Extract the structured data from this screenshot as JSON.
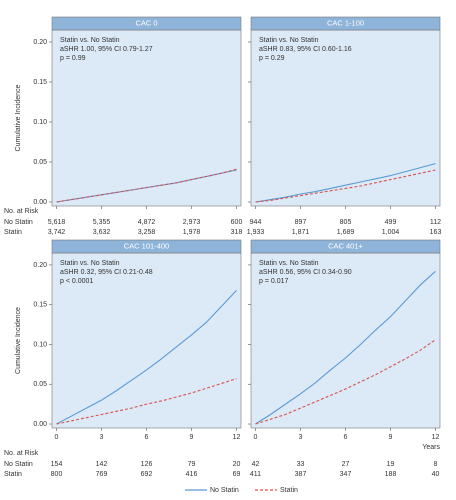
{
  "chart_data": [
    {
      "type": "line",
      "title": "CAC 0",
      "annotation": [
        "Statin vs. No Statin",
        "aSHR 1.00, 95% CI 0.79-1.27",
        "p = 0.99"
      ],
      "ylabel": "Cumulative Incidence",
      "x": [
        0,
        1,
        2,
        3,
        4,
        5,
        6,
        7,
        8,
        9,
        10,
        11,
        12
      ],
      "xlim": [
        -0.3,
        12.3
      ],
      "xticks": [
        0,
        3,
        6,
        9,
        12
      ],
      "show_xtick_labels": false,
      "ylim": [
        -0.005,
        0.215
      ],
      "yticks": [
        {
          "value": 0,
          "label": "0.00"
        },
        0.05,
        {
          "value": 0.1,
          "label": "0.10"
        },
        0.15,
        {
          "value": 0.2,
          "label": "0.20"
        }
      ],
      "show_ytick_labels": true,
      "series": [
        {
          "name": "No Statin",
          "color": "#5b9bd5",
          "dash": false,
          "values": [
            0,
            0.003,
            0.006,
            0.009,
            0.012,
            0.015,
            0.018,
            0.021,
            0.024,
            0.028,
            0.032,
            0.036,
            0.04
          ]
        },
        {
          "name": "Statin",
          "color": "#d9534f",
          "dash": true,
          "values": [
            0,
            0.003,
            0.006,
            0.009,
            0.012,
            0.015,
            0.018,
            0.021,
            0.024,
            0.028,
            0.032,
            0.036,
            0.041
          ]
        }
      ],
      "risk_table": {
        "title": "No. at Risk",
        "rows": [
          {
            "name": "No Statin",
            "values": [
              5618,
              5355,
              4872,
              2973,
              600
            ],
            "value_labels": [
              "5,618",
              "5,355",
              "4,872",
              "2,973",
              "600"
            ]
          },
          {
            "name": "Statin",
            "values": [
              3742,
              3632,
              3258,
              1978,
              318
            ],
            "value_labels": [
              "3,742",
              "3,632",
              "3,258",
              "1,978",
              "318"
            ]
          }
        ]
      }
    },
    {
      "type": "line",
      "title": "CAC 1-100",
      "annotation": [
        "Statin vs. No Statin",
        "aSHR 0.83, 95% CI 0.60-1.16",
        "p = 0.29"
      ],
      "x": [
        0,
        1,
        2,
        3,
        4,
        5,
        6,
        7,
        8,
        9,
        10,
        11,
        12
      ],
      "xlim": [
        -0.3,
        12.3
      ],
      "xticks": [
        0,
        3,
        6,
        9,
        12
      ],
      "show_xtick_labels": false,
      "ylim": [
        -0.005,
        0.215
      ],
      "yticks": [
        {
          "value": 0,
          "label": "0.00"
        },
        0.05,
        {
          "value": 0.1,
          "label": "0.10"
        },
        0.15,
        {
          "value": 0.2,
          "label": "0.20"
        }
      ],
      "show_ytick_labels": false,
      "series": [
        {
          "name": "No Statin",
          "color": "#5b9bd5",
          "dash": false,
          "values": [
            0,
            0.003,
            0.006,
            0.01,
            0.013,
            0.017,
            0.021,
            0.025,
            0.029,
            0.033,
            0.038,
            0.043,
            0.048
          ]
        },
        {
          "name": "Statin",
          "color": "#d9534f",
          "dash": true,
          "values": [
            0,
            0.002,
            0.005,
            0.008,
            0.011,
            0.014,
            0.017,
            0.02,
            0.024,
            0.028,
            0.032,
            0.036,
            0.04
          ]
        }
      ],
      "risk_table": {
        "rows": [
          {
            "values": [
              944,
              897,
              805,
              499,
              112
            ]
          },
          {
            "values": [
              1933,
              1871,
              1689,
              1004,
              163
            ],
            "value_labels": [
              "1,933",
              "1,871",
              "1,689",
              "1,004",
              "163"
            ]
          }
        ]
      }
    },
    {
      "type": "line",
      "title": "CAC 101-400",
      "annotation": [
        "Statin vs. No Statin",
        "aSHR 0.32, 95% CI 0.21-0.48",
        "p < 0.0001"
      ],
      "ylabel": "Cumulative Incidence",
      "x": [
        0,
        1,
        2,
        3,
        4,
        5,
        6,
        7,
        8,
        9,
        10,
        11,
        12
      ],
      "xlim": [
        -0.3,
        12.3
      ],
      "xticks": [
        0,
        3,
        6,
        9,
        12
      ],
      "show_xtick_labels": true,
      "ylim": [
        -0.005,
        0.215
      ],
      "yticks": [
        {
          "value": 0,
          "label": "0.00"
        },
        0.05,
        {
          "value": 0.1,
          "label": "0.10"
        },
        0.15,
        {
          "value": 0.2,
          "label": "0.20"
        }
      ],
      "show_ytick_labels": true,
      "series": [
        {
          "name": "No Statin",
          "color": "#5b9bd5",
          "dash": false,
          "values": [
            0,
            0.01,
            0.02,
            0.03,
            0.042,
            0.055,
            0.068,
            0.082,
            0.097,
            0.112,
            0.128,
            0.148,
            0.168
          ]
        },
        {
          "name": "Statin",
          "color": "#d9534f",
          "dash": true,
          "values": [
            0,
            0.004,
            0.008,
            0.012,
            0.016,
            0.02,
            0.025,
            0.029,
            0.034,
            0.039,
            0.045,
            0.051,
            0.057
          ]
        }
      ],
      "risk_table": {
        "title": "No. at Risk",
        "rows": [
          {
            "name": "No Statin",
            "values": [
              154,
              142,
              126,
              79,
              20
            ]
          },
          {
            "name": "Statin",
            "values": [
              800,
              769,
              692,
              416,
              69
            ]
          }
        ]
      }
    },
    {
      "type": "line",
      "title": "CAC 401+",
      "annotation": [
        "Statin vs. No Statin",
        "aSHR 0.56, 95% CI 0.34-0.90",
        "p = 0.017"
      ],
      "xlabel": "Years",
      "x": [
        0,
        1,
        2,
        3,
        4,
        5,
        6,
        7,
        8,
        9,
        10,
        11,
        12
      ],
      "xlim": [
        -0.3,
        12.3
      ],
      "xticks": [
        0,
        3,
        6,
        9,
        12
      ],
      "show_xtick_labels": true,
      "ylim": [
        -0.005,
        0.215
      ],
      "yticks": [
        {
          "value": 0,
          "label": "0.00"
        },
        0.05,
        {
          "value": 0.1,
          "label": "0.10"
        },
        0.15,
        {
          "value": 0.2,
          "label": "0.20"
        }
      ],
      "show_ytick_labels": false,
      "legend": "bottom",
      "series": [
        {
          "name": "No Statin",
          "color": "#5b9bd5",
          "dash": false,
          "values": [
            0,
            0.012,
            0.025,
            0.038,
            0.052,
            0.068,
            0.083,
            0.1,
            0.118,
            0.135,
            0.155,
            0.175,
            0.192
          ]
        },
        {
          "name": "Statin",
          "color": "#d9534f",
          "dash": true,
          "values": [
            0,
            0.006,
            0.012,
            0.02,
            0.028,
            0.036,
            0.044,
            0.053,
            0.062,
            0.072,
            0.082,
            0.093,
            0.106
          ]
        }
      ],
      "risk_table": {
        "rows": [
          {
            "values": [
              42,
              33,
              27,
              19,
              8
            ]
          },
          {
            "values": [
              411,
              387,
              347,
              188,
              40
            ]
          }
        ]
      }
    }
  ]
}
